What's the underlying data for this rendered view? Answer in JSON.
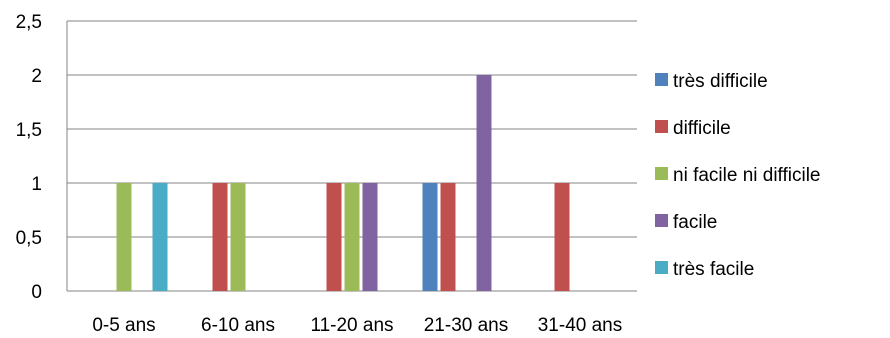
{
  "chart_data": {
    "type": "bar",
    "title": "",
    "xlabel": "",
    "ylabel": "",
    "categories": [
      "0-5 ans",
      "6-10 ans",
      "11-20 ans",
      "21-30 ans",
      "31-40 ans"
    ],
    "series": [
      {
        "name": "très difficile",
        "color": "#4F81BD",
        "values": [
          0,
          0,
          0,
          1,
          0
        ]
      },
      {
        "name": "difficile",
        "color": "#C0504D",
        "values": [
          0,
          1,
          1,
          1,
          1
        ]
      },
      {
        "name": "ni facile ni difficile",
        "color": "#9BBB59",
        "values": [
          1,
          1,
          1,
          0,
          0
        ]
      },
      {
        "name": "facile",
        "color": "#8064A2",
        "values": [
          0,
          0,
          1,
          2,
          0
        ]
      },
      {
        "name": "très facile",
        "color": "#4BACC6",
        "values": [
          1,
          0,
          0,
          0,
          0
        ]
      }
    ],
    "ylim": [
      0,
      2.5
    ],
    "yticks": [
      "0",
      "0,5",
      "1",
      "1,5",
      "2",
      "2,5"
    ],
    "grid": true,
    "legend_position": "right"
  }
}
